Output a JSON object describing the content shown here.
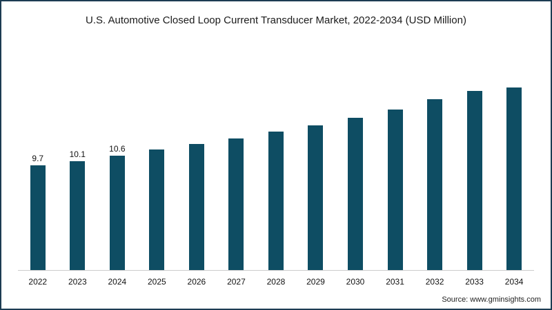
{
  "chart_data": {
    "type": "bar",
    "title": "U.S. Automotive Closed Loop Current Transducer Market, 2022-2034 (USD Million)",
    "categories": [
      "2022",
      "2023",
      "2024",
      "2025",
      "2026",
      "2027",
      "2028",
      "2029",
      "2030",
      "2031",
      "2032",
      "2033",
      "2034"
    ],
    "values": [
      9.7,
      10.1,
      10.6,
      11.2,
      11.7,
      12.2,
      12.8,
      13.4,
      14.1,
      14.9,
      15.8,
      16.6,
      17.5
    ],
    "data_labels": [
      "9.7",
      "10.1",
      "10.6",
      "",
      "",
      "",
      "",
      "",
      "",
      "",
      "",
      "",
      ""
    ],
    "xlabel": "",
    "ylabel": "",
    "ylim": [
      0,
      18
    ],
    "grid": false,
    "legend": "none",
    "bar_color": "#0e4d63",
    "axis_line_color": "#cccccc",
    "frame_border_color": "#1d3c53"
  },
  "footer": {
    "source_text": "Source: www.gminsights.com"
  }
}
